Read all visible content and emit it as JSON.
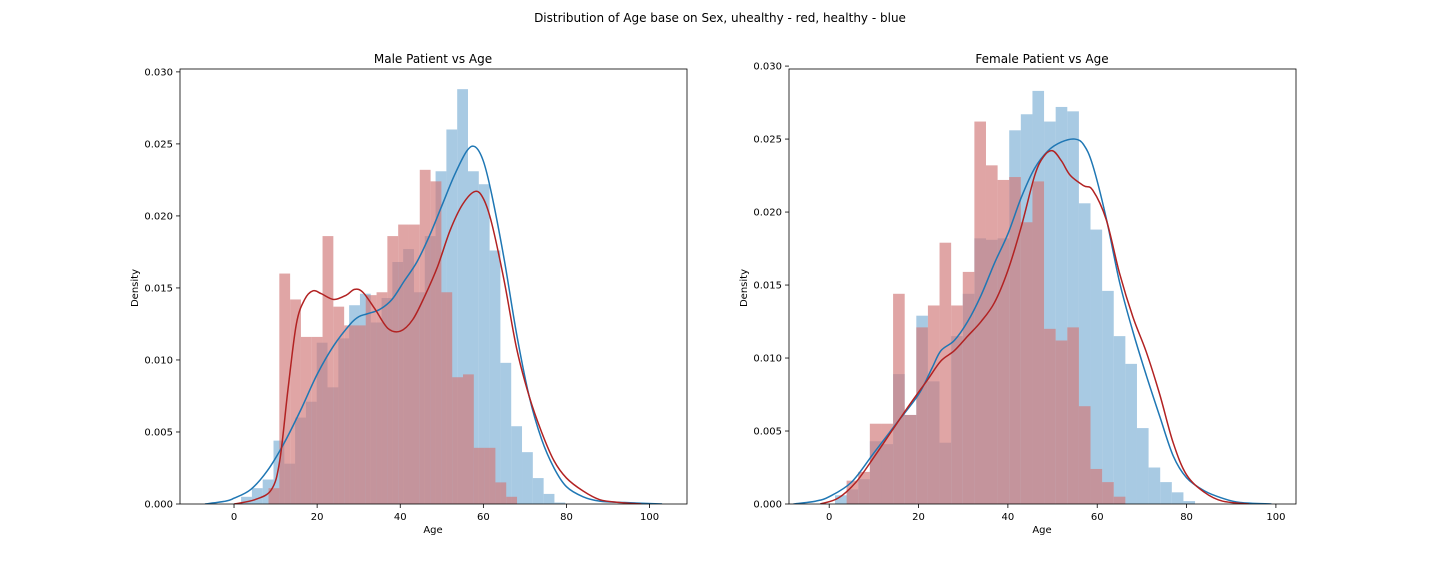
{
  "figure": {
    "suptitle": "Distribution of Age base on Sex, uhealthy - red, healthy - blue"
  },
  "colors": {
    "healthy": "#1f77b4",
    "unhealthy": "#b22222",
    "healthy_bar": "#7fb1d6",
    "unhealthy_bar": "#d27b7b"
  },
  "chart_data": [
    {
      "type": "histogram",
      "title": "Male Patient vs Age",
      "xlabel": "Age",
      "ylabel": "Density",
      "xlim": [
        -13,
        109
      ],
      "ylim": [
        0,
        0.0302
      ],
      "xticks": [
        0,
        20,
        40,
        60,
        80,
        100
      ],
      "yticks": [
        0.0,
        0.005,
        0.01,
        0.015,
        0.02,
        0.025,
        0.03
      ],
      "ytick_labels": [
        "0.000",
        "0.005",
        "0.010",
        "0.015",
        "0.020",
        "0.025",
        "0.030"
      ],
      "bin_width": 2.6,
      "series": [
        {
          "color_key": "healthy",
          "bin_start": 1.7,
          "densities": [
            0.0005,
            0.0011,
            0.0017,
            0.0044,
            0.0028,
            0.006,
            0.0071,
            0.0112,
            0.0081,
            0.0115,
            0.0138,
            0.0146,
            0.0126,
            0.0143,
            0.0168,
            0.0177,
            0.0147,
            0.0186,
            0.0231,
            0.026,
            0.0288,
            0.0231,
            0.0222,
            0.0176,
            0.0098,
            0.0054,
            0.0036,
            0.0018,
            0.0007,
            0.0001
          ],
          "kde": [
            [
              -7,
              0.0
            ],
            [
              -2,
              0.0002
            ],
            [
              0,
              0.0004
            ],
            [
              4,
              0.001
            ],
            [
              8,
              0.0023
            ],
            [
              12,
              0.0042
            ],
            [
              16,
              0.0065
            ],
            [
              20,
              0.009
            ],
            [
              24,
              0.011
            ],
            [
              28,
              0.0125
            ],
            [
              30,
              0.013
            ],
            [
              32,
              0.0132
            ],
            [
              35,
              0.0135
            ],
            [
              38,
              0.0142
            ],
            [
              41,
              0.0155
            ],
            [
              44,
              0.0168
            ],
            [
              47,
              0.0186
            ],
            [
              50,
              0.0207
            ],
            [
              53,
              0.0228
            ],
            [
              56,
              0.0245
            ],
            [
              58,
              0.0248
            ],
            [
              60,
              0.0238
            ],
            [
              62,
              0.0215
            ],
            [
              65,
              0.017
            ],
            [
              68,
              0.0118
            ],
            [
              71,
              0.0075
            ],
            [
              74,
              0.0045
            ],
            [
              77,
              0.0025
            ],
            [
              80,
              0.0012
            ],
            [
              84,
              0.0005
            ],
            [
              88,
              0.0002
            ],
            [
              94,
              0.0001
            ],
            [
              103,
              0.0
            ]
          ]
        },
        {
          "color_key": "unhealthy",
          "bin_start": 8.3,
          "densities": [
            0.0011,
            0.016,
            0.0142,
            0.0116,
            0.0116,
            0.0186,
            0.0137,
            0.0124,
            0.0124,
            0.0145,
            0.0147,
            0.0186,
            0.0194,
            0.0194,
            0.0232,
            0.0224,
            0.0147,
            0.0088,
            0.009,
            0.0039,
            0.0039,
            0.0015,
            0.0005
          ],
          "kde": [
            [
              0,
              0.0
            ],
            [
              5,
              0.0003
            ],
            [
              9,
              0.001
            ],
            [
              11,
              0.003
            ],
            [
              13,
              0.008
            ],
            [
              15,
              0.0125
            ],
            [
              17,
              0.0142
            ],
            [
              19,
              0.0148
            ],
            [
              21,
              0.0146
            ],
            [
              24,
              0.0142
            ],
            [
              27,
              0.0145
            ],
            [
              29,
              0.0149
            ],
            [
              31,
              0.0147
            ],
            [
              34,
              0.0135
            ],
            [
              37,
              0.0122
            ],
            [
              40,
              0.012
            ],
            [
              43,
              0.0128
            ],
            [
              46,
              0.0145
            ],
            [
              49,
              0.0165
            ],
            [
              52,
              0.019
            ],
            [
              55,
              0.0208
            ],
            [
              58,
              0.0217
            ],
            [
              60,
              0.0212
            ],
            [
              62,
              0.0195
            ],
            [
              65,
              0.0155
            ],
            [
              68,
              0.0108
            ],
            [
              71,
              0.0075
            ],
            [
              74,
              0.005
            ],
            [
              77,
              0.003
            ],
            [
              80,
              0.0018
            ],
            [
              84,
              0.0009
            ],
            [
              88,
              0.0003
            ],
            [
              93,
              0.0001
            ],
            [
              98,
              0.0
            ]
          ]
        }
      ]
    },
    {
      "type": "histogram",
      "title": "Female Patient vs Age",
      "xlabel": "Age",
      "ylabel": "Density",
      "xlim": [
        -9,
        104.5
      ],
      "ylim": [
        0,
        0.0298
      ],
      "xticks": [
        0,
        20,
        40,
        60,
        80,
        100
      ],
      "yticks": [
        0.0,
        0.005,
        0.01,
        0.015,
        0.02,
        0.025,
        0.03
      ],
      "ytick_labels": [
        "0.000",
        "0.005",
        "0.010",
        "0.015",
        "0.020",
        "0.025",
        "0.030"
      ],
      "bin_width": 2.6,
      "series": [
        {
          "color_key": "healthy",
          "bin_start": 1.3,
          "densities": [
            0.0006,
            0.001,
            0.0017,
            0.0043,
            0.0041,
            0.0089,
            0.0061,
            0.0129,
            0.0084,
            0.0042,
            0.0115,
            0.0144,
            0.0182,
            0.0181,
            0.0182,
            0.0256,
            0.0267,
            0.0283,
            0.0262,
            0.0272,
            0.0269,
            0.0206,
            0.0188,
            0.0146,
            0.0115,
            0.0096,
            0.0052,
            0.0025,
            0.0015,
            0.0008,
            0.0002
          ],
          "kde": [
            [
              -8,
              0.0
            ],
            [
              -3,
              0.0002
            ],
            [
              0,
              0.0005
            ],
            [
              5,
              0.0015
            ],
            [
              10,
              0.0035
            ],
            [
              15,
              0.0055
            ],
            [
              20,
              0.0075
            ],
            [
              23,
              0.0093
            ],
            [
              25,
              0.0105
            ],
            [
              28,
              0.0112
            ],
            [
              31,
              0.0125
            ],
            [
              34,
              0.0143
            ],
            [
              37,
              0.0165
            ],
            [
              40,
              0.0185
            ],
            [
              43,
              0.021
            ],
            [
              46,
              0.023
            ],
            [
              49,
              0.0242
            ],
            [
              52,
              0.0248
            ],
            [
              55,
              0.025
            ],
            [
              57,
              0.0246
            ],
            [
              59,
              0.0232
            ],
            [
              62,
              0.0196
            ],
            [
              65,
              0.0152
            ],
            [
              68,
              0.0118
            ],
            [
              71,
              0.0088
            ],
            [
              74,
              0.006
            ],
            [
              77,
              0.0033
            ],
            [
              80,
              0.0018
            ],
            [
              84,
              0.0009
            ],
            [
              88,
              0.0004
            ],
            [
              92,
              0.0001
            ],
            [
              99,
              0.0
            ]
          ]
        },
        {
          "color_key": "unhealthy",
          "bin_start": 3.9,
          "densities": [
            0.0016,
            0.0022,
            0.0055,
            0.0055,
            0.0144,
            0.0061,
            0.0121,
            0.0136,
            0.0179,
            0.0136,
            0.0159,
            0.0262,
            0.0232,
            0.0222,
            0.0224,
            0.0193,
            0.0221,
            0.012,
            0.0112,
            0.0121,
            0.0067,
            0.0024,
            0.0015,
            0.0005
          ],
          "kde": [
            [
              -2,
              0.0
            ],
            [
              2,
              0.0004
            ],
            [
              6,
              0.0015
            ],
            [
              10,
              0.0032
            ],
            [
              14,
              0.005
            ],
            [
              18,
              0.0068
            ],
            [
              22,
              0.0085
            ],
            [
              25,
              0.0098
            ],
            [
              28,
              0.0105
            ],
            [
              31,
              0.0115
            ],
            [
              34,
              0.0125
            ],
            [
              37,
              0.0138
            ],
            [
              40,
              0.016
            ],
            [
              43,
              0.019
            ],
            [
              46,
              0.0225
            ],
            [
              48,
              0.0238
            ],
            [
              50,
              0.0242
            ],
            [
              52,
              0.0235
            ],
            [
              54,
              0.0225
            ],
            [
              57,
              0.0218
            ],
            [
              59,
              0.0215
            ],
            [
              62,
              0.0195
            ],
            [
              65,
              0.0158
            ],
            [
              68,
              0.0128
            ],
            [
              71,
              0.0104
            ],
            [
              74,
              0.0075
            ],
            [
              77,
              0.0042
            ],
            [
              80,
              0.002
            ],
            [
              84,
              0.0008
            ],
            [
              88,
              0.0002
            ],
            [
              94,
              0.0
            ]
          ]
        }
      ]
    }
  ]
}
